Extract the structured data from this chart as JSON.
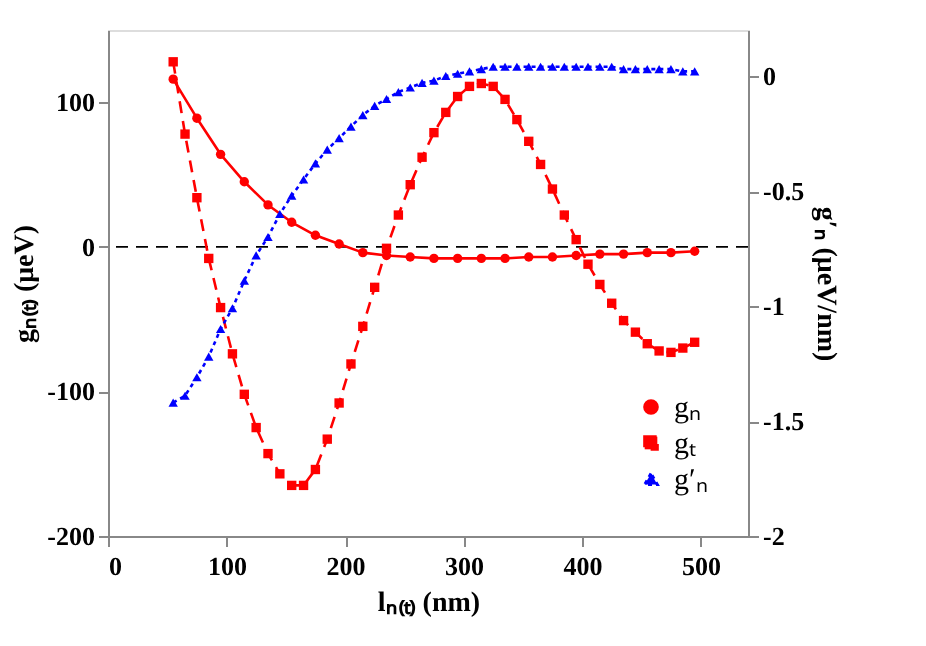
{
  "chart_data": {
    "type": "line",
    "xlabel": "lₙ₍ₜ₎ (nm)",
    "ylabel": "gₙ₍ₜ₎ (μeV)",
    "y2label": "g′ₙ (μeV/nm)",
    "xlim": [
      0,
      540
    ],
    "xticks": [
      0,
      100,
      200,
      300,
      400,
      500
    ],
    "ylim": [
      -200,
      150
    ],
    "yticks": [
      -200,
      -100,
      0,
      100
    ],
    "y2lim": [
      -2,
      0.2
    ],
    "y2ticks": [
      -2,
      -1.5,
      -1,
      -0.5,
      0
    ],
    "legend": "bottom right",
    "ref_lines": [
      {
        "axis": "y",
        "value": 0,
        "color": "#000000",
        "line_style": "dashed"
      }
    ],
    "series": [
      {
        "name": "gₙ",
        "color": "#ff0000",
        "marker": "circle",
        "line_style": "solid",
        "x": [
          55,
          75,
          95,
          115,
          135,
          155,
          175,
          195,
          215,
          235,
          255,
          275,
          295,
          315,
          335,
          355,
          375,
          395,
          415,
          435,
          455,
          475,
          495
        ],
        "values": [
          116,
          89,
          64,
          45,
          29,
          17,
          8,
          2,
          -4,
          -6,
          -7,
          -8,
          -8,
          -8,
          -8,
          -7,
          -7,
          -6,
          -5,
          -5,
          -4,
          -4,
          -3
        ]
      },
      {
        "name": "gₜ",
        "color": "#ff0000",
        "marker": "square",
        "line_style": "dashed",
        "x": [
          55,
          65,
          75,
          85,
          95,
          105,
          115,
          125,
          135,
          145,
          155,
          165,
          175,
          185,
          195,
          205,
          215,
          225,
          235,
          245,
          255,
          265,
          275,
          285,
          295,
          305,
          315,
          325,
          335,
          345,
          355,
          365,
          375,
          385,
          395,
          405,
          415,
          425,
          435,
          445,
          455,
          465,
          475,
          485,
          495
        ],
        "values": [
          128,
          78,
          34,
          -8,
          -42,
          -74,
          -102,
          -125,
          -143,
          -157,
          -165,
          -165,
          -154,
          -133,
          -108,
          -81,
          -55,
          -28,
          -1,
          22,
          43,
          62,
          79,
          93,
          104,
          111,
          113,
          111,
          102,
          88,
          73,
          57,
          40,
          22,
          5,
          -12,
          -26,
          -39,
          -51,
          -59,
          -67,
          -72,
          -73,
          -70,
          -66
        ]
      },
      {
        "name": "g′ₙ",
        "color": "#0000ff",
        "marker": "triangle",
        "line_style": "dotted",
        "axis": "y2",
        "x": [
          55,
          65,
          75,
          85,
          95,
          105,
          115,
          125,
          135,
          145,
          155,
          165,
          175,
          185,
          195,
          205,
          215,
          225,
          235,
          245,
          255,
          265,
          275,
          285,
          295,
          305,
          315,
          325,
          335,
          345,
          355,
          365,
          375,
          385,
          395,
          405,
          415,
          425,
          435,
          445,
          455,
          465,
          475,
          485,
          495
        ],
        "values": [
          -1.42,
          -1.39,
          -1.31,
          -1.22,
          -1.1,
          -1.01,
          -0.89,
          -0.78,
          -0.7,
          -0.6,
          -0.52,
          -0.45,
          -0.38,
          -0.32,
          -0.27,
          -0.22,
          -0.17,
          -0.13,
          -0.1,
          -0.07,
          -0.05,
          -0.03,
          -0.02,
          0,
          0.01,
          0.02,
          0.03,
          0.04,
          0.04,
          0.04,
          0.04,
          0.04,
          0.04,
          0.04,
          0.04,
          0.04,
          0.04,
          0.04,
          0.03,
          0.03,
          0.03,
          0.03,
          0.03,
          0.02,
          0.02
        ]
      }
    ]
  }
}
